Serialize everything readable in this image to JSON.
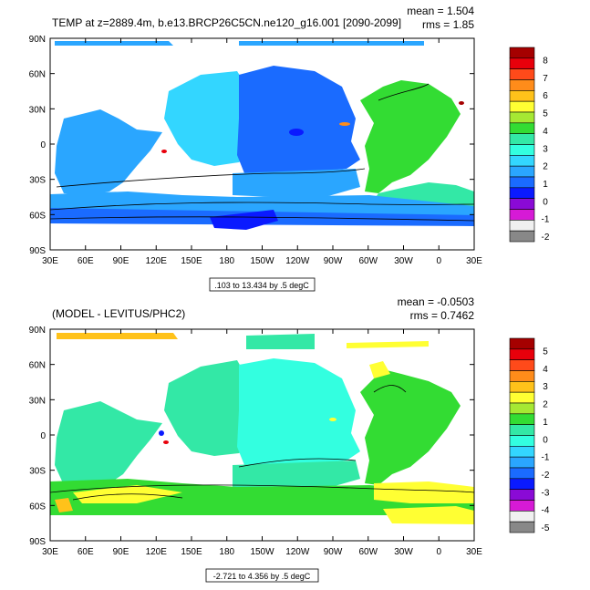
{
  "chart_data": [
    {
      "type": "heatmap",
      "title": "TEMP at z=2889.4m, b.e13.BRCP26C5CN.ne120_g16.001 [2090-2099]",
      "stats": {
        "mean": "mean = 1.504",
        "rms": "rms = 1.85"
      },
      "y_tick_labels": [
        "90N",
        "60N",
        "30N",
        "0",
        "30S",
        "60S",
        "90S"
      ],
      "x_tick_labels": [
        "30E",
        "60E",
        "90E",
        "120E",
        "150E",
        "180",
        "150W",
        "120W",
        "90W",
        "60W",
        "30W",
        "0",
        "30E"
      ],
      "contour_info": ".103 to 13.434 by .5 degC",
      "colorbar": {
        "labels": [
          "8",
          "7",
          "6",
          "5",
          "4",
          "3",
          "2",
          "1",
          "0",
          "-1",
          "-2"
        ],
        "colors": [
          "#a50000",
          "#e8000b",
          "#ff4a1a",
          "#ff8c1a",
          "#ffc21a",
          "#ffff33",
          "#a6e833",
          "#33dc33",
          "#33e8a6",
          "#33ffe0",
          "#33d6ff",
          "#2aa6ff",
          "#1a6bff",
          "#0a1aff",
          "#8a0ad6",
          "#d61ad6",
          "#f0f0f0",
          "#888888"
        ]
      }
    },
    {
      "type": "heatmap",
      "title": "(MODEL - LEVITUS/PHC2)",
      "stats": {
        "mean": "mean = -0.0503",
        "rms": "rms = 0.7462"
      },
      "y_tick_labels": [
        "90N",
        "60N",
        "30N",
        "0",
        "30S",
        "60S",
        "90S"
      ],
      "x_tick_labels": [
        "30E",
        "60E",
        "90E",
        "120E",
        "150E",
        "180",
        "150W",
        "120W",
        "90W",
        "60W",
        "30W",
        "0",
        "30E"
      ],
      "contour_info": "-2.721 to 4.356 by .5 degC",
      "colorbar": {
        "labels": [
          "5",
          "4",
          "3",
          "2",
          "1",
          "0",
          "-1",
          "-2",
          "-3",
          "-4",
          "-5"
        ],
        "colors": [
          "#a50000",
          "#e8000b",
          "#ff4a1a",
          "#ff8c1a",
          "#ffc21a",
          "#ffff33",
          "#a6e833",
          "#33dc33",
          "#33e8a6",
          "#33ffe0",
          "#33d6ff",
          "#2aa6ff",
          "#1a6bff",
          "#0a1aff",
          "#8a0ad6",
          "#d61ad6",
          "#f0f0f0",
          "#888888"
        ]
      }
    }
  ]
}
